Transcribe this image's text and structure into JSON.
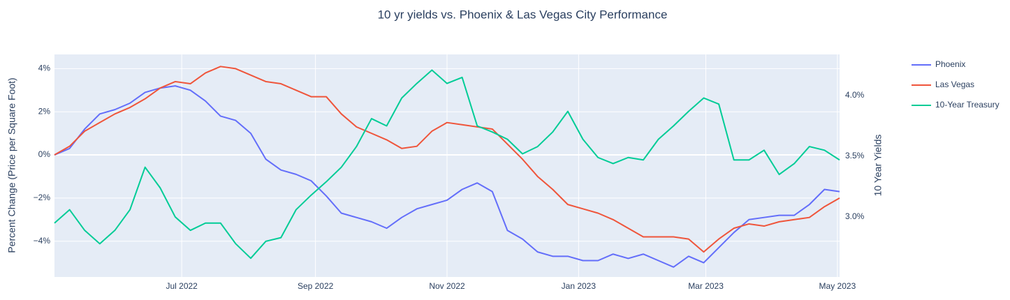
{
  "chart_data": {
    "type": "line",
    "title": "10 yr yields vs. Phoenix & Las Vegas City Performance",
    "y_label": "Percent Change (Price per Square Foot)",
    "y2_label": "10 Year Yields",
    "x": [
      "2022-05-03",
      "2022-05-10",
      "2022-05-17",
      "2022-05-24",
      "2022-05-31",
      "2022-06-07",
      "2022-06-14",
      "2022-06-21",
      "2022-06-28",
      "2022-07-05",
      "2022-07-12",
      "2022-07-19",
      "2022-07-26",
      "2022-08-02",
      "2022-08-09",
      "2022-08-16",
      "2022-08-23",
      "2022-08-30",
      "2022-09-06",
      "2022-09-13",
      "2022-09-20",
      "2022-09-27",
      "2022-10-04",
      "2022-10-11",
      "2022-10-18",
      "2022-10-25",
      "2022-11-01",
      "2022-11-08",
      "2022-11-15",
      "2022-11-22",
      "2022-11-29",
      "2022-12-06",
      "2022-12-13",
      "2022-12-20",
      "2022-12-27",
      "2023-01-03",
      "2023-01-10",
      "2023-01-17",
      "2023-01-24",
      "2023-01-31",
      "2023-02-07",
      "2023-02-14",
      "2023-02-21",
      "2023-02-28",
      "2023-03-07",
      "2023-03-14",
      "2023-03-21",
      "2023-03-28",
      "2023-04-04",
      "2023-04-11",
      "2023-04-18",
      "2023-04-25",
      "2023-05-02"
    ],
    "series": [
      {
        "name": "Phoenix",
        "color": "#636efa",
        "values": [
          0,
          0.3,
          1.2,
          1.9,
          2.1,
          2.4,
          2.9,
          3.1,
          3.2,
          3.0,
          2.5,
          1.8,
          1.6,
          1.0,
          -0.2,
          -0.7,
          -0.9,
          -1.2,
          -1.9,
          -2.7,
          -2.9,
          -3.1,
          -3.4,
          -2.9,
          -2.5,
          -2.3,
          -2.1,
          -1.6,
          -1.3,
          -1.7,
          -3.5,
          -3.9,
          -4.5,
          -4.7,
          -4.7,
          -4.9,
          -4.9,
          -4.6,
          -4.8,
          -4.6,
          -4.9,
          -5.2,
          -4.7,
          -5.0,
          -4.3,
          -3.6,
          -3.0,
          -2.9,
          -2.8,
          -2.8,
          -2.3,
          -1.6,
          -1.7
        ]
      },
      {
        "name": "Las Vegas",
        "color": "#EF553B",
        "values": [
          0,
          0.4,
          1.1,
          1.5,
          1.9,
          2.2,
          2.6,
          3.1,
          3.4,
          3.3,
          3.8,
          4.1,
          4.0,
          3.7,
          3.4,
          3.3,
          3.0,
          2.7,
          2.7,
          1.9,
          1.3,
          1.0,
          0.7,
          0.3,
          0.4,
          1.1,
          1.5,
          1.4,
          1.3,
          1.2,
          0.5,
          -0.2,
          -1.0,
          -1.6,
          -2.3,
          -2.5,
          -2.7,
          -3.0,
          -3.4,
          -3.8,
          -3.8,
          -3.8,
          -3.9,
          -4.5,
          -3.9,
          -3.4,
          -3.2,
          -3.3,
          -3.1,
          -3.0,
          -2.9,
          -2.4,
          -2.0
        ]
      },
      {
        "name": "10-Year Treasury",
        "color": "#00cc96",
        "axis": "y2",
        "values": [
          2.95,
          3.06,
          2.89,
          2.78,
          2.89,
          3.06,
          3.41,
          3.24,
          3.0,
          2.89,
          2.95,
          2.95,
          2.78,
          2.66,
          2.8,
          2.83,
          3.06,
          3.18,
          3.29,
          3.41,
          3.58,
          3.81,
          3.75,
          3.98,
          4.1,
          4.21,
          4.1,
          4.15,
          3.75,
          3.7,
          3.64,
          3.52,
          3.58,
          3.7,
          3.87,
          3.64,
          3.49,
          3.44,
          3.49,
          3.47,
          3.64,
          3.75,
          3.87,
          3.98,
          3.93,
          3.47,
          3.47,
          3.55,
          3.35,
          3.44,
          3.58,
          3.55,
          3.47
        ]
      }
    ],
    "xlim": [
      "2022-05-03",
      "2023-05-02"
    ],
    "xticks": [
      {
        "value": "2022-07-01",
        "label": "Jul 2022"
      },
      {
        "value": "2022-09-01",
        "label": "Sep 2022"
      },
      {
        "value": "2022-11-01",
        "label": "Nov 2022"
      },
      {
        "value": "2023-01-01",
        "label": "Jan 2023"
      },
      {
        "value": "2023-03-01",
        "label": "Mar 2023"
      },
      {
        "value": "2023-05-01",
        "label": "May 2023"
      }
    ],
    "ylim": [
      -5.66,
      4.66
    ],
    "yticks": [
      {
        "value": 4,
        "label": "4%"
      },
      {
        "value": 2,
        "label": "2%"
      },
      {
        "value": 0,
        "label": "0%"
      },
      {
        "value": -2,
        "label": "−2%"
      },
      {
        "value": -4,
        "label": "−4%"
      }
    ],
    "y2lim": [
      2.506,
      4.339
    ],
    "y2ticks": [
      {
        "value": 4.0,
        "label": "4.0%"
      },
      {
        "value": 3.5,
        "label": "3.5%"
      },
      {
        "value": 3.0,
        "label": "3.0%"
      }
    ],
    "grid": true,
    "legend": "right"
  }
}
